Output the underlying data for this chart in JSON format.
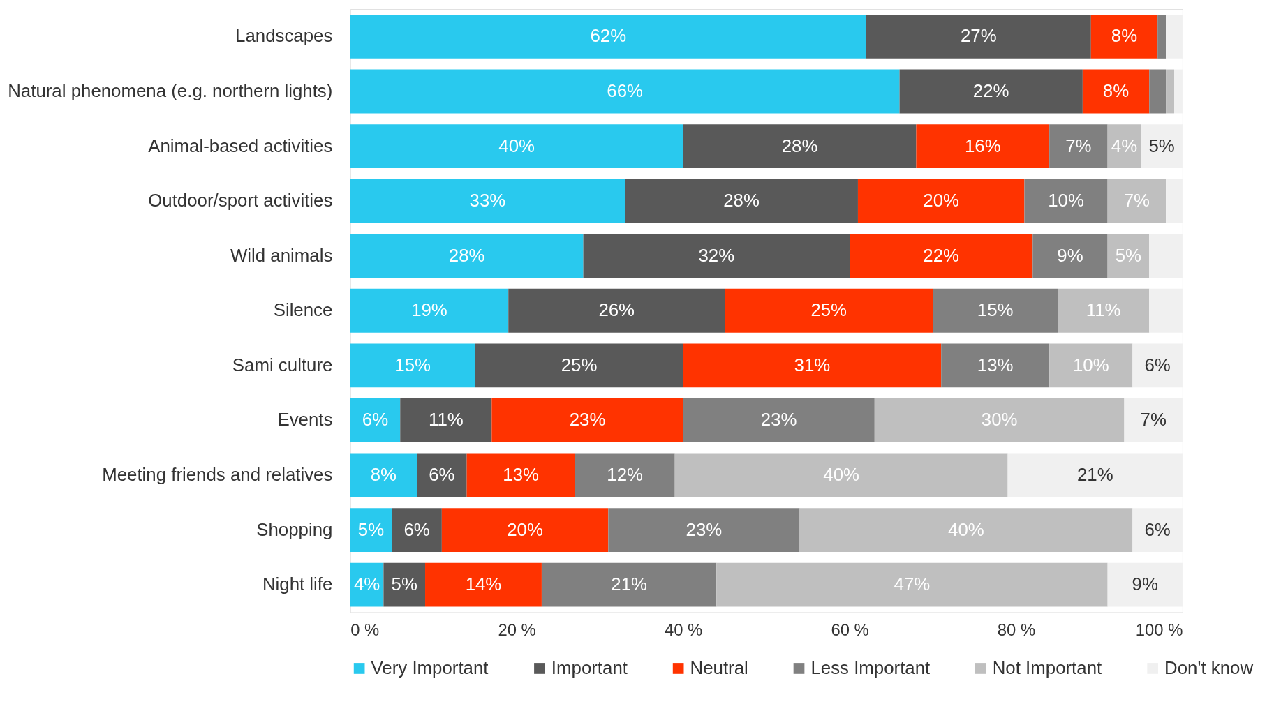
{
  "chart_data": {
    "type": "bar",
    "orientation": "horizontal",
    "stacked": true,
    "categories": [
      "Landscapes",
      "Natural phenomena (e.g. northern lights)",
      "Animal-based activities",
      "Outdoor/sport activities",
      "Wild animals",
      "Silence",
      "Sami culture",
      "Events",
      "Meeting friends and relatives",
      "Shopping",
      "Night life"
    ],
    "series": [
      {
        "name": "Very Important",
        "color": "#29c9ee",
        "values": [
          62,
          66,
          40,
          33,
          28,
          19,
          15,
          6,
          8,
          5,
          4
        ],
        "value_labels": [
          "62%",
          "66%",
          "40%",
          "33%",
          "28%",
          "19%",
          "15%",
          "6%",
          "8%",
          "5%",
          "4%"
        ]
      },
      {
        "name": "Important",
        "color": "#595959",
        "values": [
          27,
          22,
          28,
          28,
          32,
          26,
          25,
          11,
          6,
          6,
          5
        ],
        "value_labels": [
          "27%",
          "22%",
          "28%",
          "28%",
          "32%",
          "26%",
          "25%",
          "11%",
          "6%",
          "6%",
          "5%"
        ]
      },
      {
        "name": "Neutral",
        "color": "#ff3300",
        "values": [
          8,
          8,
          16,
          20,
          22,
          25,
          31,
          23,
          13,
          20,
          14
        ],
        "value_labels": [
          "8%",
          "8%",
          "16%",
          "20%",
          "22%",
          "25%",
          "31%",
          "23%",
          "13%",
          "20%",
          "14%"
        ]
      },
      {
        "name": "Less Important",
        "color": "#808080",
        "values": [
          1,
          2,
          7,
          10,
          9,
          15,
          13,
          23,
          12,
          23,
          21
        ],
        "value_labels": [
          null,
          null,
          "7%",
          "10%",
          "9%",
          "15%",
          "13%",
          "23%",
          "12%",
          "23%",
          "21%"
        ]
      },
      {
        "name": "Not Important",
        "color": "#bfbfbf",
        "values": [
          0,
          1,
          4,
          7,
          5,
          11,
          10,
          30,
          40,
          40,
          47
        ],
        "value_labels": [
          null,
          null,
          "4%",
          "7%",
          "5%",
          "11%",
          "10%",
          "30%",
          "40%",
          "40%",
          "47%"
        ]
      },
      {
        "name": "Don't know",
        "color": "#f0f0f0",
        "values": [
          2,
          1,
          5,
          2,
          4,
          4,
          6,
          7,
          21,
          6,
          9
        ],
        "value_labels": [
          null,
          null,
          "5%",
          null,
          null,
          null,
          "6%",
          "7%",
          "21%",
          "6%",
          "9%"
        ]
      }
    ],
    "xlim": [
      0,
      100
    ],
    "xticks": [
      {
        "value": 0,
        "label": "0 %"
      },
      {
        "value": 20,
        "label": "20 %"
      },
      {
        "value": 40,
        "label": "40 %"
      },
      {
        "value": 60,
        "label": "60 %"
      },
      {
        "value": 80,
        "label": "80 %"
      },
      {
        "value": 100,
        "label": "100 %"
      }
    ],
    "grid": false,
    "legend": "bottom"
  }
}
